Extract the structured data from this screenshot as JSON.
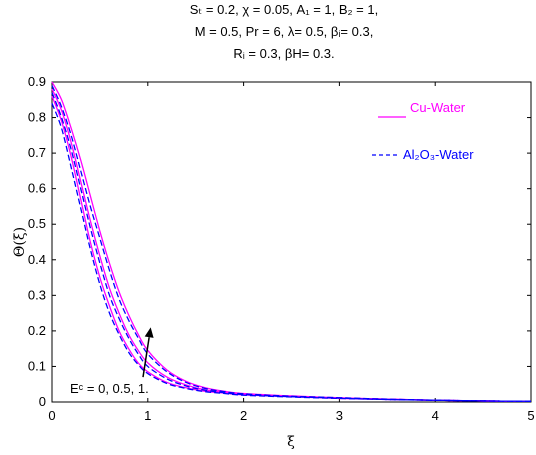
{
  "chart_data": {
    "type": "line",
    "parameters_text": {
      "line1": "Sₜ = 0.2,  χ = 0.05, A₁ = 1, B₂ = 1,",
      "line2": "M = 0.5, Pr = 6, λ= 0.5, βᵢ= 0.3,",
      "line3": "Rᵢ = 0.3, βH= 0.3."
    },
    "xlabel": "ξ",
    "ylabel": "Θ(ξ)",
    "xlim": [
      0,
      5
    ],
    "ylim": [
      0,
      0.9
    ],
    "xticks": [
      "0",
      "1",
      "2",
      "3",
      "4",
      "5"
    ],
    "yticks": [
      "0",
      "0.1",
      "0.2",
      "0.3",
      "0.4",
      "0.5",
      "0.6",
      "0.7",
      "0.8",
      "0.9"
    ],
    "grid": false,
    "legend_position": "top-right",
    "legend": [
      {
        "label": "Cu-Water",
        "style": "solid",
        "color": "#ff00ff"
      },
      {
        "label": "Al₂O₃-Water",
        "style": "dashed",
        "color": "#0000ff"
      }
    ],
    "annotation": {
      "text": "Eᶜ = 0, 0.5, 1.",
      "arrow_from": [
        0.95,
        0.07
      ],
      "arrow_to": [
        1.03,
        0.21
      ]
    },
    "x": [
      0,
      0.1,
      0.2,
      0.3,
      0.4,
      0.5,
      0.6,
      0.7,
      0.8,
      0.9,
      1.0,
      1.2,
      1.4,
      1.6,
      1.8,
      2.0,
      2.5,
      3.0,
      3.5,
      4.0,
      4.5,
      5.0
    ],
    "series": [
      {
        "name": "Cu-Water",
        "Ec": 0,
        "style": "solid",
        "color": "#ff00ff",
        "values": [
          0.86,
          0.79,
          0.69,
          0.57,
          0.45,
          0.35,
          0.27,
          0.2,
          0.15,
          0.11,
          0.085,
          0.055,
          0.04,
          0.03,
          0.025,
          0.02,
          0.015,
          0.01,
          0.007,
          0.005,
          0.003,
          0.002
        ]
      },
      {
        "name": "Cu-Water",
        "Ec": 0.5,
        "style": "solid",
        "color": "#ff00ff",
        "values": [
          0.88,
          0.82,
          0.73,
          0.62,
          0.51,
          0.41,
          0.32,
          0.25,
          0.19,
          0.145,
          0.11,
          0.07,
          0.048,
          0.034,
          0.027,
          0.022,
          0.016,
          0.011,
          0.008,
          0.005,
          0.003,
          0.002
        ]
      },
      {
        "name": "Cu-Water",
        "Ec": 1,
        "style": "solid",
        "color": "#ff00ff",
        "values": [
          0.9,
          0.85,
          0.77,
          0.68,
          0.58,
          0.48,
          0.39,
          0.31,
          0.245,
          0.19,
          0.145,
          0.09,
          0.058,
          0.04,
          0.03,
          0.024,
          0.017,
          0.012,
          0.008,
          0.005,
          0.003,
          0.002
        ]
      },
      {
        "name": "Al₂O₃-Water",
        "Ec": 0,
        "style": "dashed",
        "color": "#0000ff",
        "values": [
          0.84,
          0.77,
          0.66,
          0.545,
          0.43,
          0.33,
          0.25,
          0.19,
          0.14,
          0.105,
          0.08,
          0.052,
          0.038,
          0.029,
          0.024,
          0.019,
          0.014,
          0.01,
          0.007,
          0.005,
          0.003,
          0.002
        ]
      },
      {
        "name": "Al₂O₃-Water",
        "Ec": 0.5,
        "style": "dashed",
        "color": "#0000ff",
        "values": [
          0.87,
          0.8,
          0.71,
          0.6,
          0.49,
          0.39,
          0.3,
          0.235,
          0.18,
          0.135,
          0.1,
          0.065,
          0.045,
          0.033,
          0.026,
          0.021,
          0.015,
          0.011,
          0.007,
          0.005,
          0.003,
          0.002
        ]
      },
      {
        "name": "Al₂O₃-Water",
        "Ec": 1,
        "style": "dashed",
        "color": "#0000ff",
        "values": [
          0.89,
          0.83,
          0.75,
          0.65,
          0.55,
          0.46,
          0.37,
          0.29,
          0.23,
          0.18,
          0.135,
          0.085,
          0.055,
          0.038,
          0.029,
          0.023,
          0.016,
          0.012,
          0.008,
          0.005,
          0.003,
          0.002
        ]
      }
    ]
  }
}
